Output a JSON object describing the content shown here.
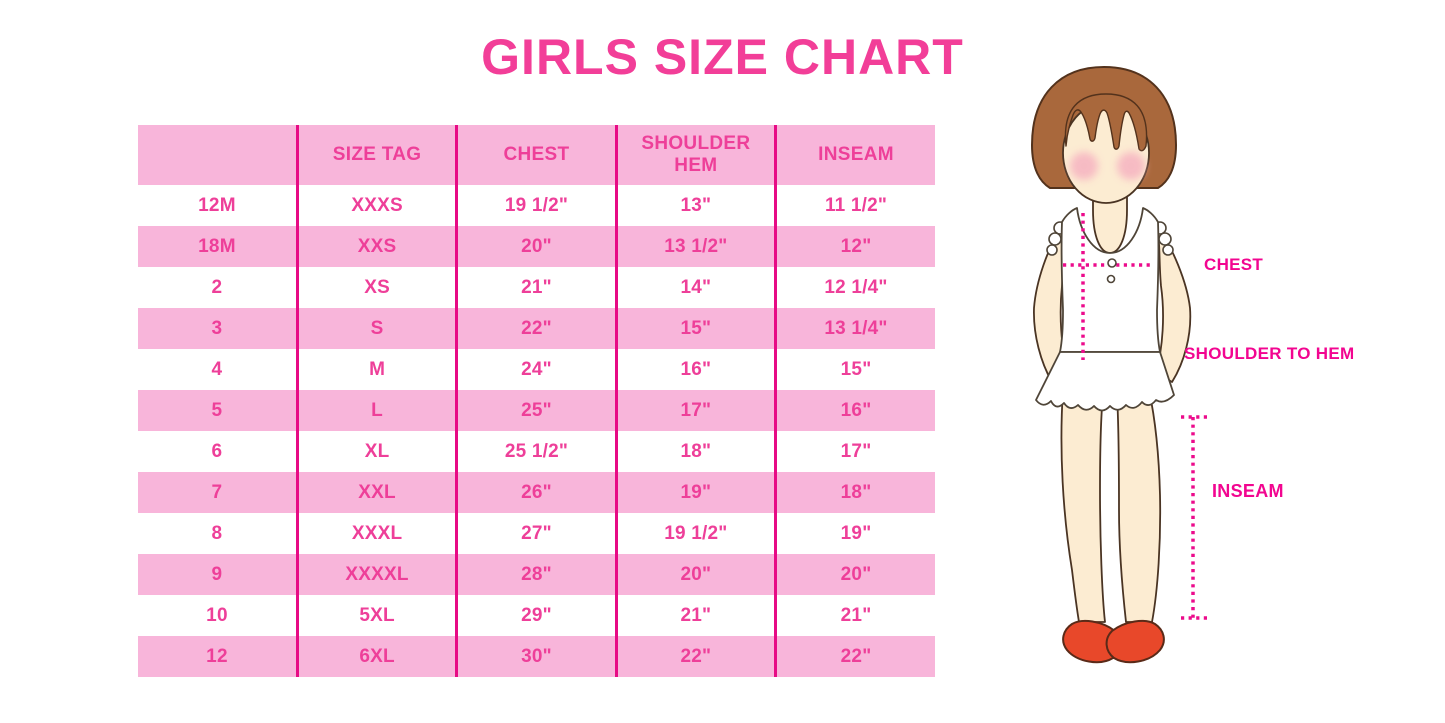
{
  "title": "GIRLS SIZE CHART",
  "table": {
    "columns": [
      "",
      "SIZE TAG",
      "CHEST",
      "SHOULDER HEM",
      "INSEAM"
    ],
    "rows": [
      [
        "12M",
        "XXXS",
        "19 1/2\"",
        "13\"",
        "11 1/2\""
      ],
      [
        "18M",
        "XXS",
        "20\"",
        "13 1/2\"",
        "12\""
      ],
      [
        "2",
        "XS",
        "21\"",
        "14\"",
        "12 1/4\""
      ],
      [
        "3",
        "S",
        "22\"",
        "15\"",
        "13 1/4\""
      ],
      [
        "4",
        "M",
        "24\"",
        "16\"",
        "15\""
      ],
      [
        "5",
        "L",
        "25\"",
        "17\"",
        "16\""
      ],
      [
        "6",
        "XL",
        "25 1/2\"",
        "18\"",
        "17\""
      ],
      [
        "7",
        "XXL",
        "26\"",
        "19\"",
        "18\""
      ],
      [
        "8",
        "XXXL",
        "27\"",
        "19 1/2\"",
        "19\""
      ],
      [
        "9",
        "XXXXL",
        "28\"",
        "20\"",
        "20\""
      ],
      [
        "10",
        "5XL",
        "29\"",
        "21\"",
        "21\""
      ],
      [
        "12",
        "6XL",
        "30\"",
        "22\"",
        "22\""
      ]
    ]
  },
  "figure": {
    "labels": {
      "chest": "CHEST",
      "shoulder_to_hem": "SHOULDER TO HEM",
      "inseam": "INSEAM"
    }
  },
  "colors": {
    "title_pink": "#f23e98",
    "table_text_pink": "#ee3f99",
    "row_pink": "#f8b5da",
    "divider_magenta": "#e70b85",
    "label_magenta": "#f20590",
    "dotted_line_magenta": "#ec0b8c",
    "hair_brown": "#a9683c",
    "skin": "#fcecd2",
    "blush": "#f6b3c1",
    "shoe_red": "#e8482a",
    "shirt_white": "#ffffff"
  }
}
